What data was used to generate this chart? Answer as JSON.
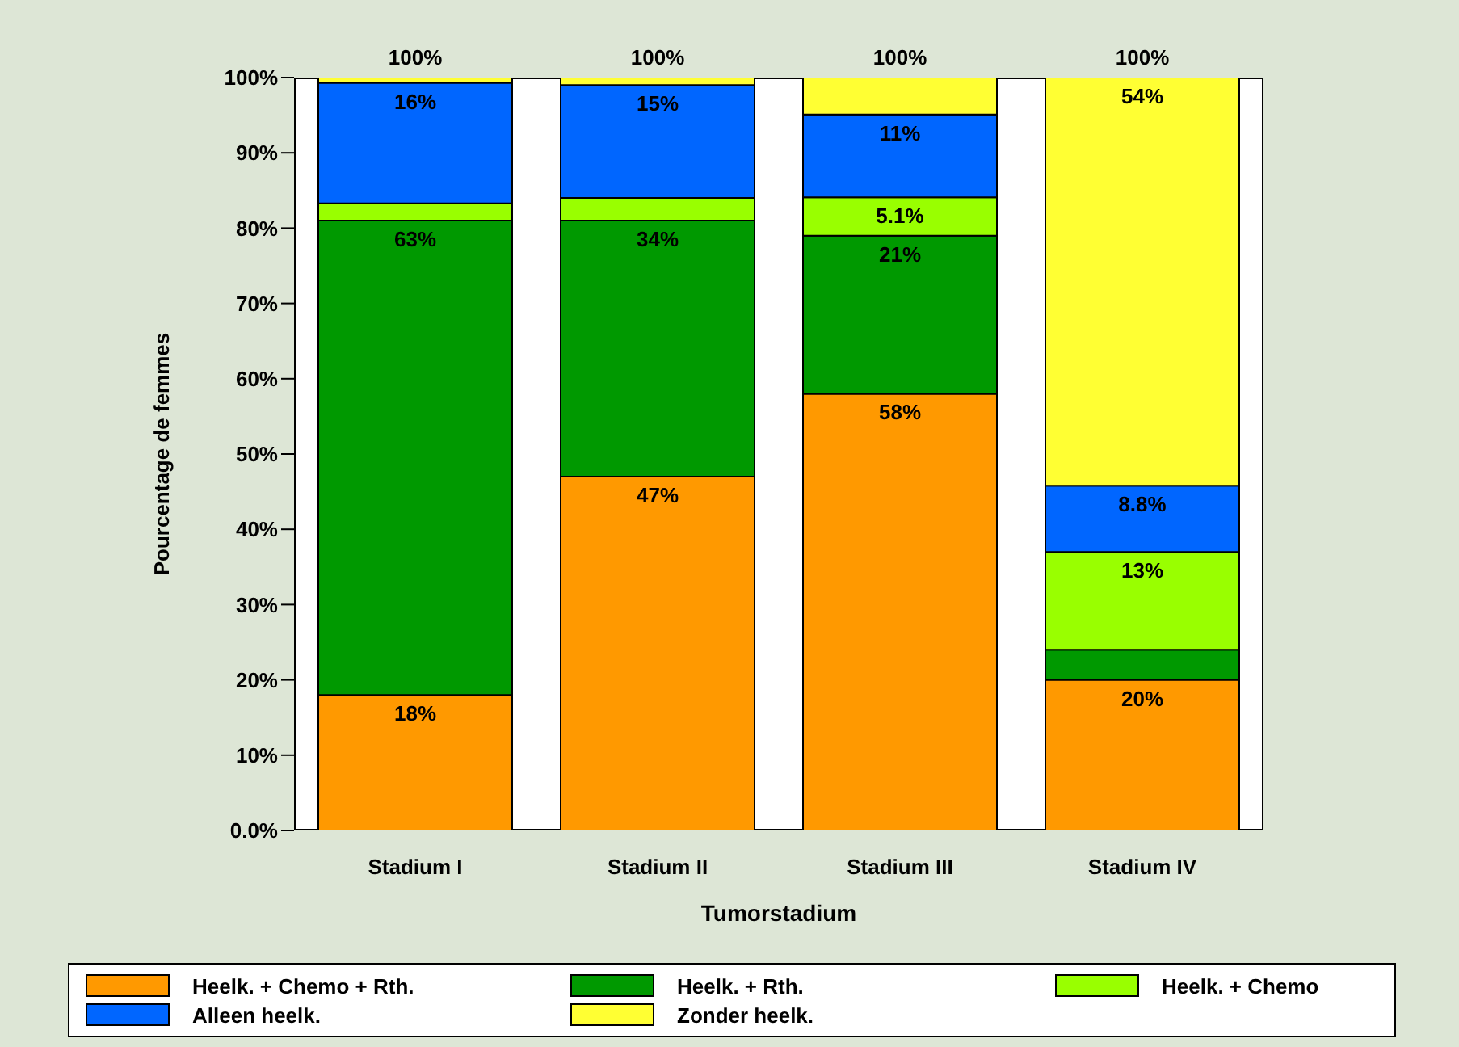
{
  "chart_data": {
    "type": "bar",
    "stacked": true,
    "xlabel": "Tumorstadium",
    "ylabel": "Pourcentage de femmes",
    "categories": [
      "Stadium I",
      "Stadium II",
      "Stadium III",
      "Stadium IV"
    ],
    "series": [
      {
        "name": "Heelk. + Chemo + Rth.",
        "color": "#ff9900",
        "values": [
          18,
          47,
          58,
          20
        ],
        "value_labels": [
          "18%",
          "47%",
          "58%",
          "20%"
        ]
      },
      {
        "name": "Heelk. + Rth.",
        "color": "#009900",
        "values": [
          63,
          34,
          21,
          4
        ],
        "value_labels": [
          "63%",
          "34%",
          "21%",
          null
        ]
      },
      {
        "name": "Heelk. + Chemo",
        "color": "#99ff00",
        "values": [
          2.3,
          3,
          5.1,
          13
        ],
        "value_labels": [
          null,
          null,
          "5.1%",
          "13%"
        ]
      },
      {
        "name": "Alleen heelk.",
        "color": "#0066ff",
        "values": [
          16,
          15,
          11,
          8.8
        ],
        "value_labels": [
          "16%",
          "15%",
          "11%",
          "8.8%"
        ]
      },
      {
        "name": "Zonder heelk.",
        "color": "#ffff33",
        "values": [
          0.7,
          1,
          4.9,
          54.2
        ],
        "value_labels": [
          null,
          null,
          null,
          "54%"
        ]
      }
    ],
    "totals": [
      "100%",
      "100%",
      "100%",
      "100%"
    ],
    "ylim": [
      0,
      100
    ],
    "yticks": [
      {
        "value": 0,
        "label": "0.0%"
      },
      {
        "value": 10,
        "label": "10%"
      },
      {
        "value": 20,
        "label": "20%"
      },
      {
        "value": 30,
        "label": "30%"
      },
      {
        "value": 40,
        "label": "40%"
      },
      {
        "value": 50,
        "label": "50%"
      },
      {
        "value": 60,
        "label": "60%"
      },
      {
        "value": 70,
        "label": "70%"
      },
      {
        "value": 80,
        "label": "80%"
      },
      {
        "value": 90,
        "label": "90%"
      },
      {
        "value": 100,
        "label": "100%"
      }
    ],
    "grid": false,
    "legend": "bottom"
  }
}
